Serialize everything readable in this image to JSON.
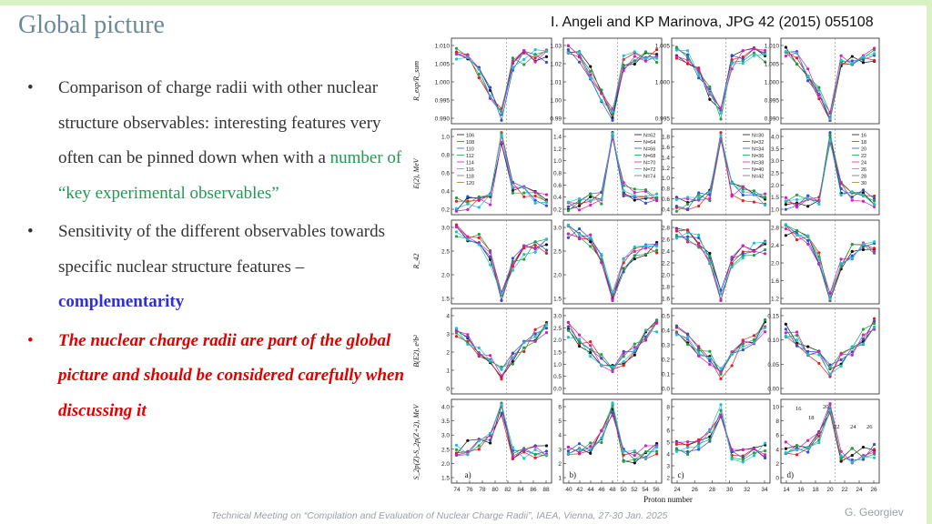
{
  "slide": {
    "title": "Global picture",
    "citation": "I. Angeli and KP Marinova, JPG 42 (2015) 055108",
    "footer": "Technical Meeting on “Compilation and Evaluation of Nuclear Charge Radii”, IAEA, Vienna, 27-30 Jan. 2025",
    "author": "G. Georgiev"
  },
  "bullets": [
    {
      "marker": "•",
      "text": "Comparison of charge radii with other nuclear structure observables: interesting features very often can be pinned down when with a ",
      "highlight": "number of “key experimental observables”",
      "style": "green"
    },
    {
      "marker": "•",
      "text": "Sensitivity of the different observables towards specific nuclear structure features – ",
      "highlight": "complementarity",
      "style": "blue"
    },
    {
      "marker": "•",
      "text": "",
      "highlight": "The nuclear charge radii are part of the global picture and should be considered carefully when discussing it",
      "style": "red"
    }
  ],
  "figure": {
    "row_labels": [
      "R_exp/R_sum",
      "E(2), MeV",
      "R_42",
      "B(E2), e²b²",
      "S_2p(Z)-S_2p(Z+2), MeV"
    ],
    "x_axis_label": "Proton number",
    "panel_letters": [
      "a)",
      "b)",
      "c)",
      "d)"
    ],
    "column_ticks": [
      [
        "74",
        "76",
        "78",
        "80",
        "82",
        "84",
        "86",
        "88"
      ],
      [
        "40",
        "42",
        "44",
        "46",
        "48",
        "50",
        "52",
        "54",
        "56"
      ],
      [
        "24",
        "26",
        "28",
        "30",
        "32",
        "34"
      ],
      [
        "14",
        "16",
        "18",
        "20",
        "22",
        "24",
        "26"
      ]
    ],
    "y_ticks": [
      [
        [
          "1.010",
          "1.005",
          "1.000",
          "0.995",
          "0.990"
        ],
        [
          "1.03",
          "1.02",
          "1.01",
          "1.00",
          "0.99"
        ],
        [
          "1.005",
          "1.000",
          "0.995"
        ],
        [
          "1.010",
          "1.005",
          "1.000",
          "0.995",
          "0.990"
        ]
      ],
      [
        [
          "1.0",
          "0.8",
          "0.6",
          "0.4",
          "0.2"
        ],
        [
          "1.4",
          "1.2",
          "1.0",
          "0.8",
          "0.6",
          "0.4",
          "0.2"
        ],
        [
          "1.8",
          "1.6",
          "1.4",
          "1.2",
          "1.0",
          "0.8",
          "0.6",
          "0.4"
        ],
        [
          "4.0",
          "3.5",
          "3.0",
          "2.5",
          "2.0",
          "1.5",
          "1.0"
        ]
      ],
      [
        [
          "3.0",
          "2.5",
          "2.0",
          "1.5"
        ],
        [
          "3.0",
          "2.5",
          "2.0",
          "1.5"
        ],
        [
          "2.8",
          "2.6",
          "2.4",
          "2.2",
          "2.0",
          "1.8",
          "1.6"
        ],
        [
          "2.8",
          "2.4",
          "2.0",
          "1.6",
          "1.2"
        ]
      ],
      [
        [
          "4",
          "3",
          "2",
          "1",
          "0"
        ],
        [
          "3.0",
          "2.5",
          "2.0",
          "1.5",
          "1.0",
          "0.5",
          "0.0"
        ],
        [
          "0.5",
          "0.4",
          "0.3",
          "0.2",
          "0.1",
          "0.0"
        ],
        [
          "0.15",
          "0.10",
          "0.05",
          "0.00"
        ]
      ],
      [
        [
          "4.0",
          "3.5",
          "3.0",
          "2.5",
          "2.0",
          "1.5"
        ],
        [
          "6",
          "5",
          "4",
          "3",
          "2",
          "1"
        ],
        [
          "8",
          "7",
          "6",
          "5",
          "4",
          "3",
          "2"
        ],
        [
          "10",
          "8",
          "6",
          "4",
          "2",
          "0"
        ]
      ]
    ],
    "legends": [
      [
        "106",
        "108",
        "110",
        "112",
        "114",
        "116",
        "118",
        "120"
      ],
      [
        "N=62",
        "N=64",
        "N=66",
        "N=68",
        "N=70",
        "N=72",
        "N=74"
      ],
      [
        "N=30",
        "N=32",
        "N=34",
        "N=36",
        "N=38",
        "N=40",
        "N=42"
      ],
      [
        "16",
        "18",
        "20",
        "22",
        "24",
        "26",
        "28",
        "30"
      ]
    ],
    "d_row_annotations": [
      "16",
      "20",
      "18",
      "22",
      "24",
      "26"
    ],
    "series_colors": [
      "#111111",
      "#e02020",
      "#3050d0",
      "#20a040",
      "#d020c0",
      "#20c0d0",
      "#707070",
      "#a08020"
    ]
  }
}
